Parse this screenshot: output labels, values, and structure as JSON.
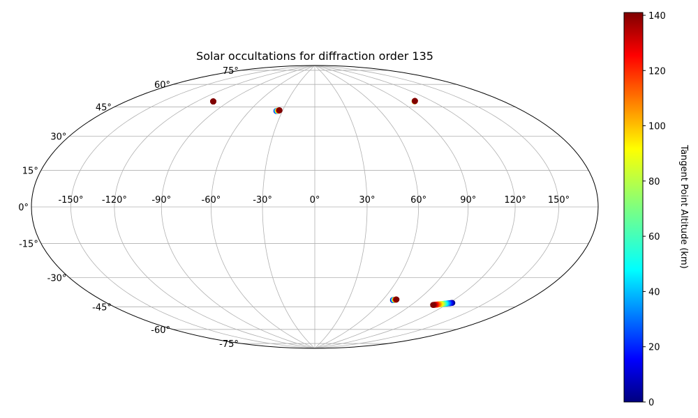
{
  "chart_data": {
    "type": "scatter",
    "projection": "hammer",
    "title": "Solar occultations for diffraction order 135",
    "lon_ticks": [
      -150,
      -120,
      -90,
      -60,
      -30,
      0,
      30,
      60,
      90,
      120,
      150
    ],
    "lon_tick_labels": [
      "-150°",
      "-120°",
      "-90°",
      "-60°",
      "-30°",
      "0°",
      "30°",
      "60°",
      "90°",
      "120°",
      "150°"
    ],
    "lat_ticks": [
      75,
      60,
      45,
      30,
      15,
      0,
      -15,
      -30,
      -45,
      -60,
      -75
    ],
    "lat_tick_labels": [
      "75°",
      "60°",
      "45°",
      "30°",
      "15°",
      "0°",
      "-15°",
      "-30°",
      "-45°",
      "-60°",
      "-75°"
    ],
    "grid": true,
    "colorbar": {
      "label": "Tangent Point Altitude (km)",
      "min": 0,
      "max": 141,
      "colormap": "jet",
      "ticks": [
        0,
        20,
        40,
        60,
        80,
        100,
        120,
        140
      ],
      "tick_labels": [
        "0",
        "20",
        "40",
        "60",
        "80",
        "100",
        "120",
        "140"
      ]
    },
    "occultations": [
      {
        "lon_start": -105.0,
        "lat_start": 58.8,
        "lon_end": -105.0,
        "lat_end": 58.8,
        "alt_start": 141,
        "alt_end": 141
      },
      {
        "lon_start": -35.5,
        "lat_start": 56.8,
        "lon_end": -33.0,
        "lat_end": 57.3,
        "alt_start": 5,
        "alt_end": 141
      },
      {
        "lon_start": 103.5,
        "lat_start": 59.0,
        "lon_end": 104.5,
        "lat_end": 59.2,
        "alt_start": 60,
        "alt_end": 141
      },
      {
        "lon_start": 69.0,
        "lat_start": -53.5,
        "lon_end": 71.5,
        "lat_end": -53.0,
        "alt_start": 0,
        "alt_end": 141
      },
      {
        "lon_start": 122.5,
        "lat_start": -50.8,
        "lon_end": 109.0,
        "lat_end": -53.5,
        "alt_start": 0,
        "alt_end": 141
      }
    ]
  }
}
